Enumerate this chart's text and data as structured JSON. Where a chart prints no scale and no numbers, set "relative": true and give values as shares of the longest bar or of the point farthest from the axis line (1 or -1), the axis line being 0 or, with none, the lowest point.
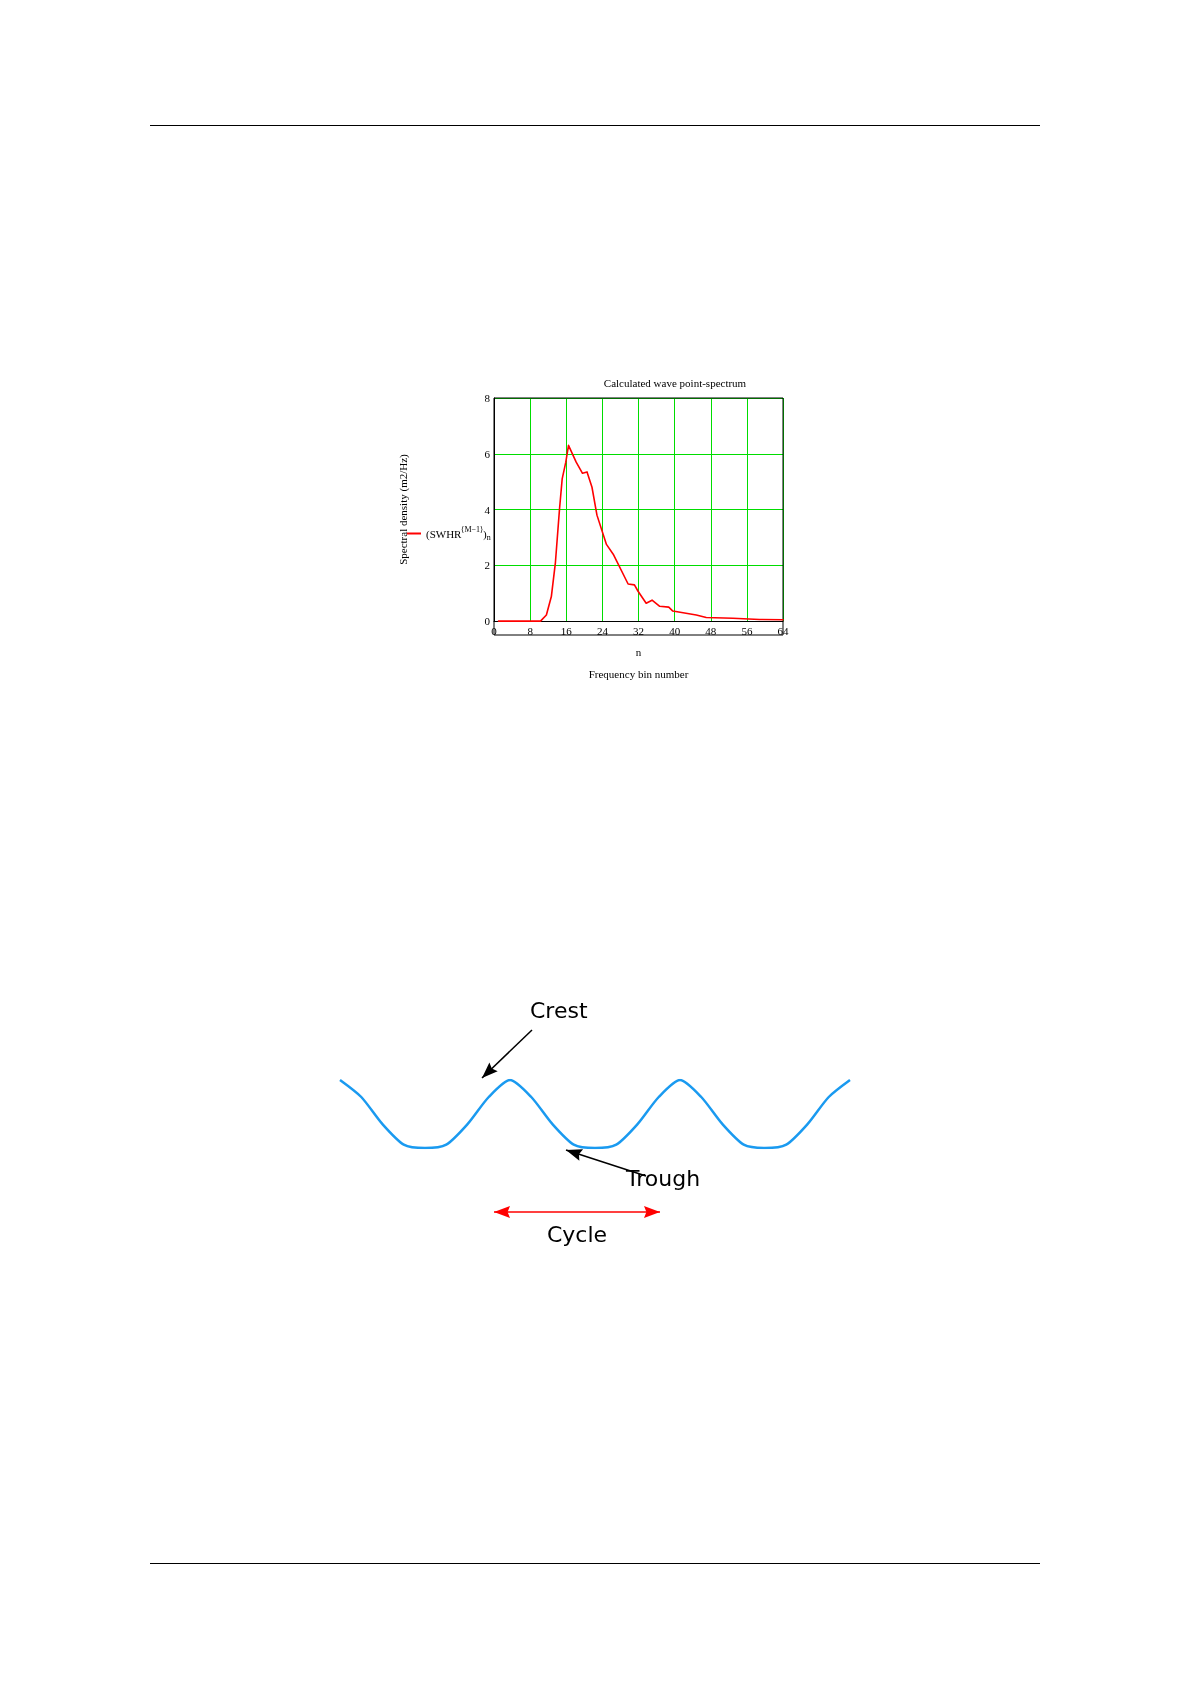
{
  "chart_data": [
    {
      "type": "line",
      "title": "Calculated wave point-spectrum",
      "xlabel": "n\nFrequency bin number",
      "ylabel": "Spectral density (m2/Hz)",
      "xlim": [
        0,
        64
      ],
      "xticks": [
        0,
        8,
        16,
        24,
        32,
        40,
        48,
        56,
        64
      ],
      "ylim": [
        0,
        8
      ],
      "yticks": [
        0,
        2,
        4,
        6,
        8
      ],
      "grid": true,
      "legend": "left",
      "marker": "none",
      "line_style": "solid",
      "series": [
        {
          "name": "(SWHR$^{⟨M−1⟩}$)$_{n}$",
          "color": "#ff0000",
          "x": [
            1,
            10.3,
            11.6,
            12.7,
            13.6,
            14.5,
            15.1,
            15.9,
            16.5,
            18.2,
            19.6,
            20.6,
            21.7,
            22.8,
            24.9,
            26.4,
            29.7,
            31.1,
            31.9,
            33.7,
            35,
            36.7,
            38.7,
            39.6,
            44.8,
            47,
            52.9,
            58.8,
            64
          ],
          "values": [
            0,
            0,
            0.22,
            0.88,
            2.1,
            4.0,
            5.1,
            5.7,
            6.3,
            5.7,
            5.3,
            5.35,
            4.8,
            3.8,
            2.75,
            2.4,
            1.33,
            1.3,
            1.07,
            0.64,
            0.75,
            0.53,
            0.5,
            0.36,
            0.22,
            0.13,
            0.1,
            0.06,
            0.05
          ]
        }
      ]
    },
    {
      "type": "line",
      "relative": true,
      "marker": "none",
      "annotations": [
        "Crest",
        "Trough",
        "Cycle"
      ],
      "categories": [
        null,
        null,
        null,
        null,
        null,
        null,
        null,
        null,
        null,
        null,
        null,
        null,
        null,
        null,
        null,
        null,
        null,
        null,
        null,
        null,
        null,
        null,
        null,
        null,
        null
      ],
      "series": [
        {
          "color": "#1a9af0",
          "values": [
            1,
            0.75,
            0.35,
            0.05,
            0,
            0.05,
            0.35,
            0.75,
            1,
            0.75,
            0.35,
            0.05,
            0,
            0.05,
            0.35,
            0.75,
            1,
            0.75,
            0.35,
            0.05,
            0,
            0.05,
            0.35,
            0.75,
            1
          ]
        }
      ]
    }
  ]
}
